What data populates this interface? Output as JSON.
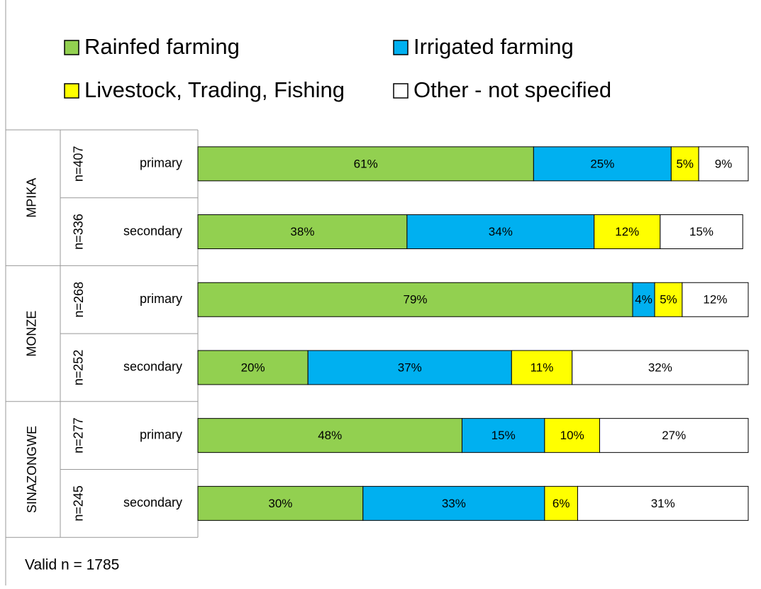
{
  "chart_data": {
    "type": "stacked_bar_horizontal",
    "groups": [
      "MPIKA",
      "MONZE",
      "SINAZONGWE"
    ],
    "sample_sizes": [
      "n=407",
      "n=336",
      "n=268",
      "n=252",
      "n=277",
      "n=245"
    ],
    "categories": [
      "primary",
      "secondary",
      "primary",
      "secondary",
      "primary",
      "secondary"
    ],
    "xlim": [
      0,
      100
    ],
    "series": [
      {
        "name": "Rainfed farming",
        "color": "#92d050",
        "values": [
          61,
          38,
          79,
          20,
          48,
          30
        ],
        "value_labels": [
          "61%",
          "38%",
          "79%",
          "20%",
          "48%",
          "30%"
        ]
      },
      {
        "name": "Irrigated farming",
        "color": "#00b0f0",
        "values": [
          25,
          34,
          4,
          37,
          15,
          33
        ],
        "value_labels": [
          "25%",
          "34%",
          "4%",
          "37%",
          "15%",
          "33%"
        ]
      },
      {
        "name": "Livestock, Trading, Fishing",
        "color": "#ffff00",
        "values": [
          5,
          12,
          5,
          11,
          10,
          6
        ],
        "value_labels": [
          "5%",
          "12%",
          "5%",
          "11%",
          "10%",
          "6%"
        ]
      },
      {
        "name": "Other - not specified",
        "color": "#ffffff",
        "values": [
          9,
          15,
          12,
          32,
          27,
          31
        ],
        "value_labels": [
          "9%",
          "15%",
          "12%",
          "32%",
          "27%",
          "31%"
        ]
      }
    ],
    "note": "Valid n = 1785"
  }
}
